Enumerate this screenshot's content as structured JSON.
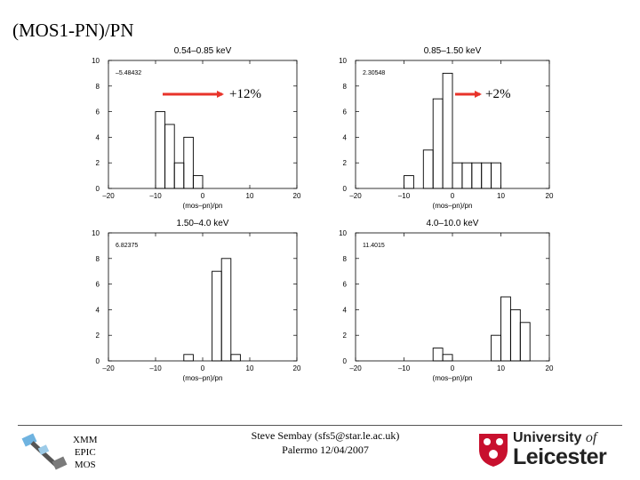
{
  "slide": {
    "title": "(MOS1-PN)/PN"
  },
  "chart_data": [
    {
      "type": "bar",
      "title": "0.54–0.85 keV",
      "xlabel": "(mos–pn)/pn",
      "stat_label": "–5.48432",
      "x_ticks": [
        "–20",
        "–10",
        "0",
        "10",
        "20"
      ],
      "y_ticks": [
        "0",
        "2",
        "4",
        "6",
        "8",
        "10"
      ],
      "xlim": [
        -20,
        20
      ],
      "ylim": [
        0,
        10
      ],
      "bin_edges": [
        -10,
        -8,
        -6,
        -4,
        -2,
        0
      ],
      "counts": [
        6,
        5,
        2,
        4,
        1
      ],
      "annotation": "+12%"
    },
    {
      "type": "bar",
      "title": "0.85–1.50 keV",
      "xlabel": "(mos–pn)/pn",
      "stat_label": "2.30548",
      "x_ticks": [
        "–20",
        "–10",
        "0",
        "10",
        "20"
      ],
      "y_ticks": [
        "0",
        "2",
        "4",
        "6",
        "8",
        "10"
      ],
      "xlim": [
        -20,
        20
      ],
      "ylim": [
        0,
        10
      ],
      "bin_edges": [
        -10,
        -8,
        -6,
        -4,
        -2,
        0,
        2,
        4,
        6,
        8,
        10
      ],
      "counts": [
        1,
        0,
        3,
        7,
        9,
        2,
        2,
        2,
        2,
        2
      ],
      "annotation": "+2%"
    },
    {
      "type": "bar",
      "title": "1.50–4.0 keV",
      "xlabel": "(mos–pn)/pn",
      "stat_label": "6.82375",
      "x_ticks": [
        "–20",
        "–10",
        "0",
        "10",
        "20"
      ],
      "y_ticks": [
        "0",
        "2",
        "4",
        "6",
        "8",
        "10"
      ],
      "xlim": [
        -20,
        20
      ],
      "ylim": [
        0,
        10
      ],
      "bin_edges": [
        -4,
        -2,
        0,
        2,
        4,
        6,
        8
      ],
      "counts": [
        0.5,
        0,
        0,
        7,
        8,
        0.5
      ],
      "annotation": ""
    },
    {
      "type": "bar",
      "title": "4.0–10.0 keV",
      "xlabel": "(mos–pn)/pn",
      "stat_label": "11.4015",
      "x_ticks": [
        "–20",
        "–10",
        "0",
        "10",
        "20"
      ],
      "y_ticks": [
        "0",
        "2",
        "4",
        "6",
        "8",
        "10"
      ],
      "xlim": [
        -20,
        20
      ],
      "ylim": [
        0,
        10
      ],
      "bin_edges": [
        -4,
        -2,
        0,
        2,
        4,
        6,
        8,
        10,
        12,
        14,
        16
      ],
      "counts": [
        1,
        0.5,
        0,
        0,
        0,
        0,
        2,
        5,
        4,
        3
      ],
      "annotation": ""
    }
  ],
  "footer": {
    "instrument": [
      "XMM",
      "EPIC",
      "MOS"
    ],
    "author": "Steve Sembay (sfs5@star.le.ac.uk)",
    "venue": "Palermo 12/04/2007",
    "logo_line1": "University",
    "logo_of": "of",
    "logo_line2": "Leicester"
  },
  "colors": {
    "arrow": "#e8332a",
    "logo_red": "#c8102e",
    "ink": "#000000"
  }
}
